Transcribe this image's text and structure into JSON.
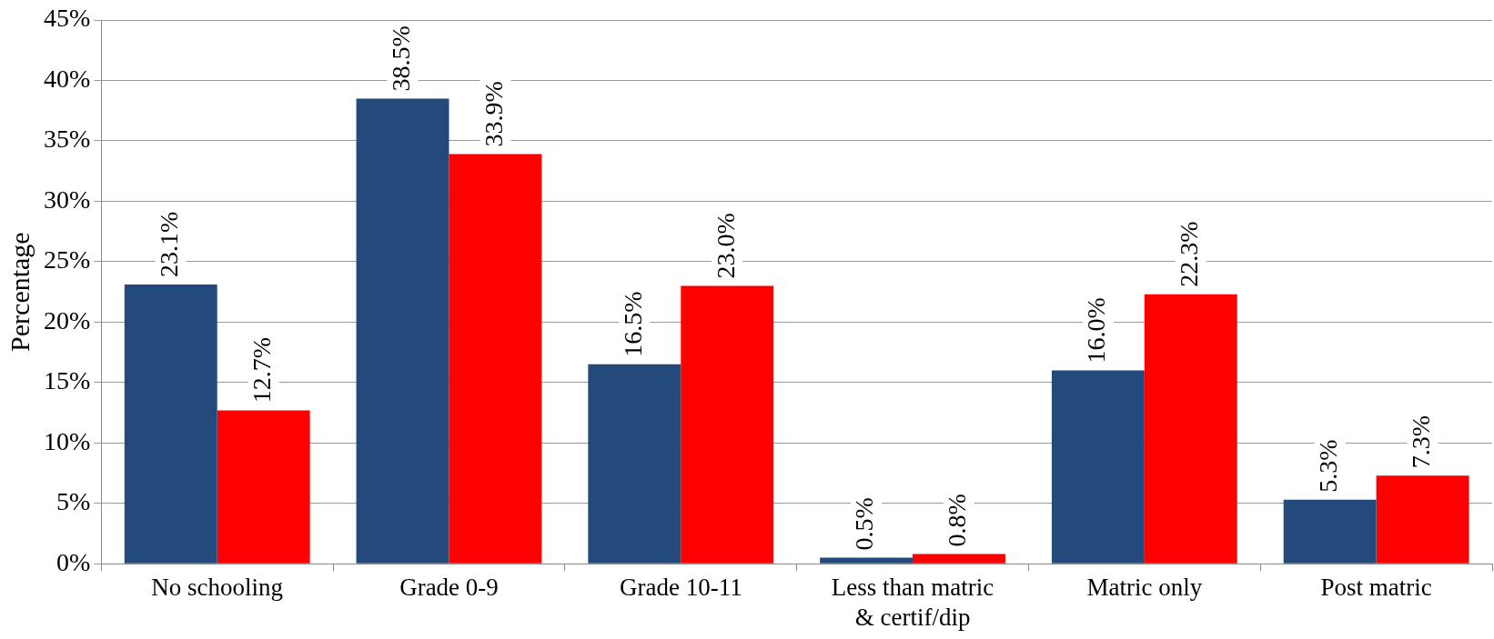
{
  "chart_data": {
    "type": "bar",
    "ylabel": "Percentage",
    "categories": [
      "No schooling",
      "Grade 0-9",
      "Grade 10-11",
      "Less than matric\n& certif/dip",
      "Matric only",
      "Post matric"
    ],
    "series": [
      {
        "color": "#234a7b",
        "values": [
          23.1,
          38.5,
          16.5,
          0.5,
          16.0,
          5.3
        ],
        "value_labels": [
          "23.1%",
          "38.5%",
          "16.5%",
          "0.5%",
          "16.0%",
          "5.3%"
        ]
      },
      {
        "color": "#ff0000",
        "values": [
          12.7,
          33.9,
          23.0,
          0.8,
          22.3,
          7.3
        ],
        "value_labels": [
          "12.7%",
          "33.9%",
          "23.0%",
          "0.8%",
          "22.3%",
          "7.3%"
        ]
      }
    ],
    "ylim": [
      0,
      45
    ],
    "yticks": [
      {
        "value": 0,
        "label": "0%"
      },
      {
        "value": 5,
        "label": "5%"
      },
      {
        "value": 10,
        "label": "10%"
      },
      {
        "value": 15,
        "label": "15%"
      },
      {
        "value": 20,
        "label": "20%"
      },
      {
        "value": 25,
        "label": "25%"
      },
      {
        "value": 30,
        "label": "30%"
      },
      {
        "value": 35,
        "label": "35%"
      },
      {
        "value": 40,
        "label": "40%"
      },
      {
        "value": 45,
        "label": "45%"
      }
    ],
    "grid": "y",
    "legend": false
  }
}
